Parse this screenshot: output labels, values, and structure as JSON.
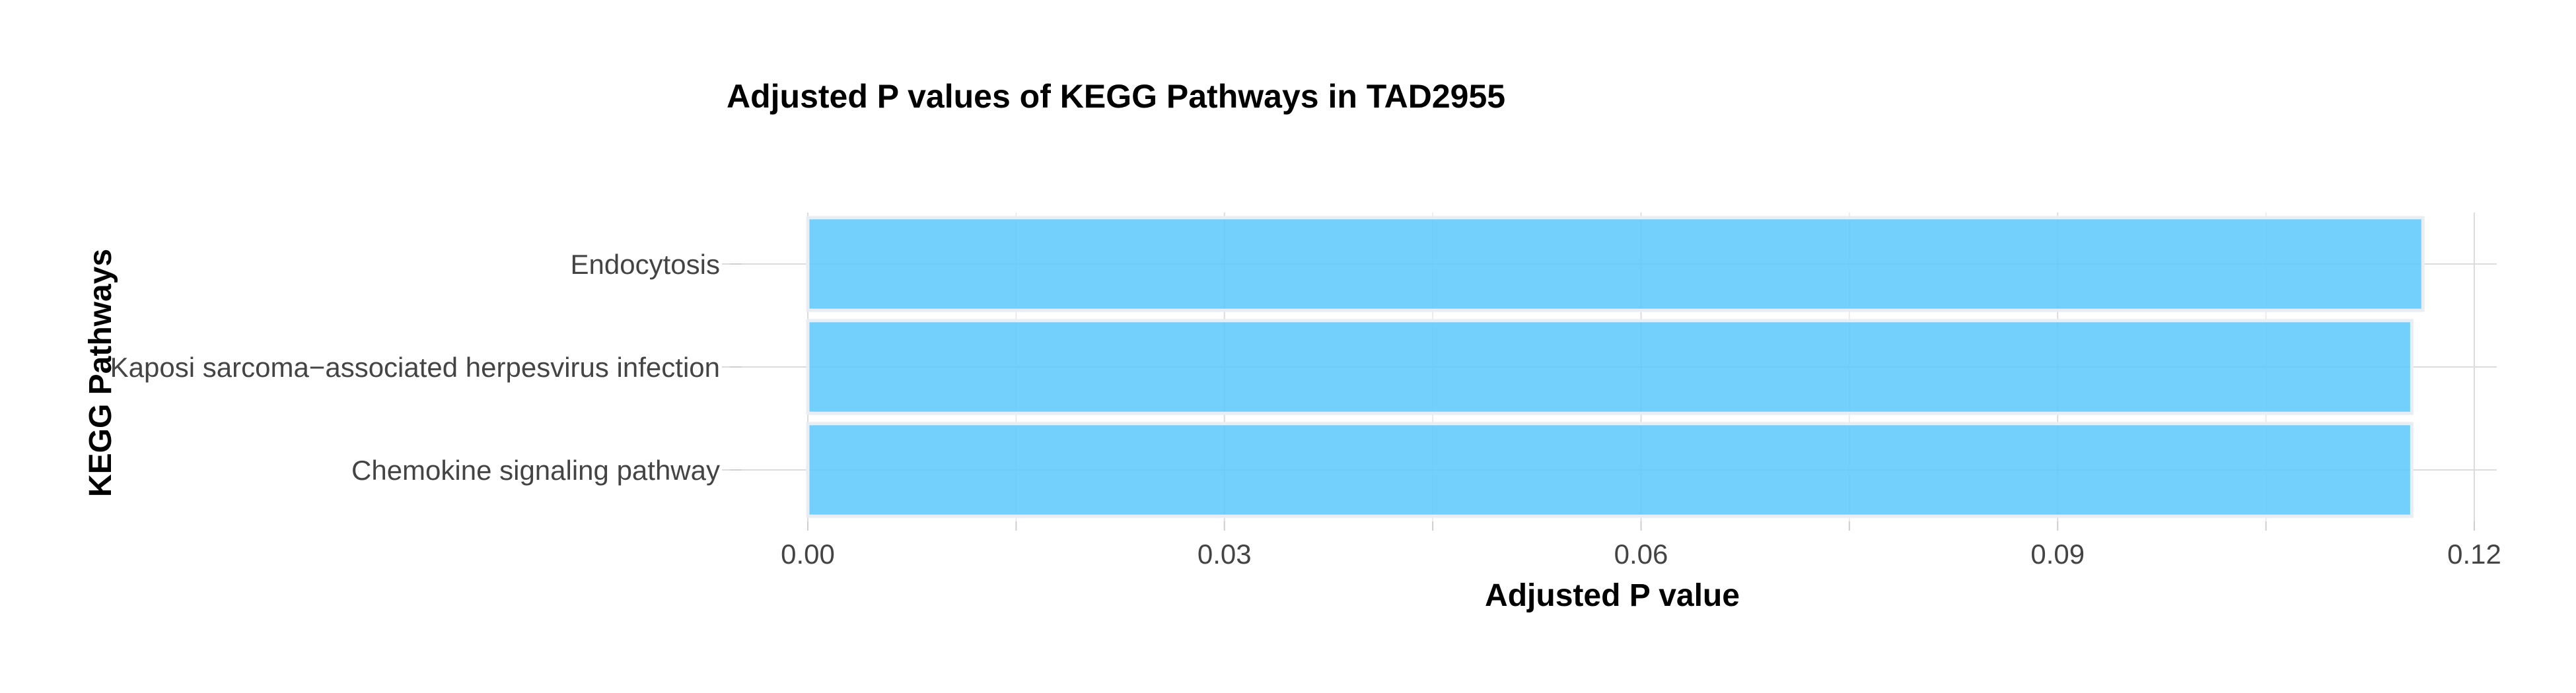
{
  "chart_data": {
    "type": "bar",
    "orientation": "horizontal",
    "title": "Adjusted P values of KEGG Pathways in TAD2955",
    "xlabel": "Adjusted P value",
    "ylabel": "KEGG Pathways",
    "categories": [
      "Endocytosis",
      "Kaposi sarcoma−associated herpesvirus infection",
      "Chemokine signaling pathway"
    ],
    "values": [
      0.1163,
      0.1155,
      0.1155
    ],
    "xlim": [
      0,
      0.12
    ],
    "xticks": [
      "0.00",
      "0.03",
      "0.06",
      "0.09",
      "0.12"
    ],
    "grid": true,
    "legend": "none",
    "bar_color": "#5bc8fb"
  }
}
